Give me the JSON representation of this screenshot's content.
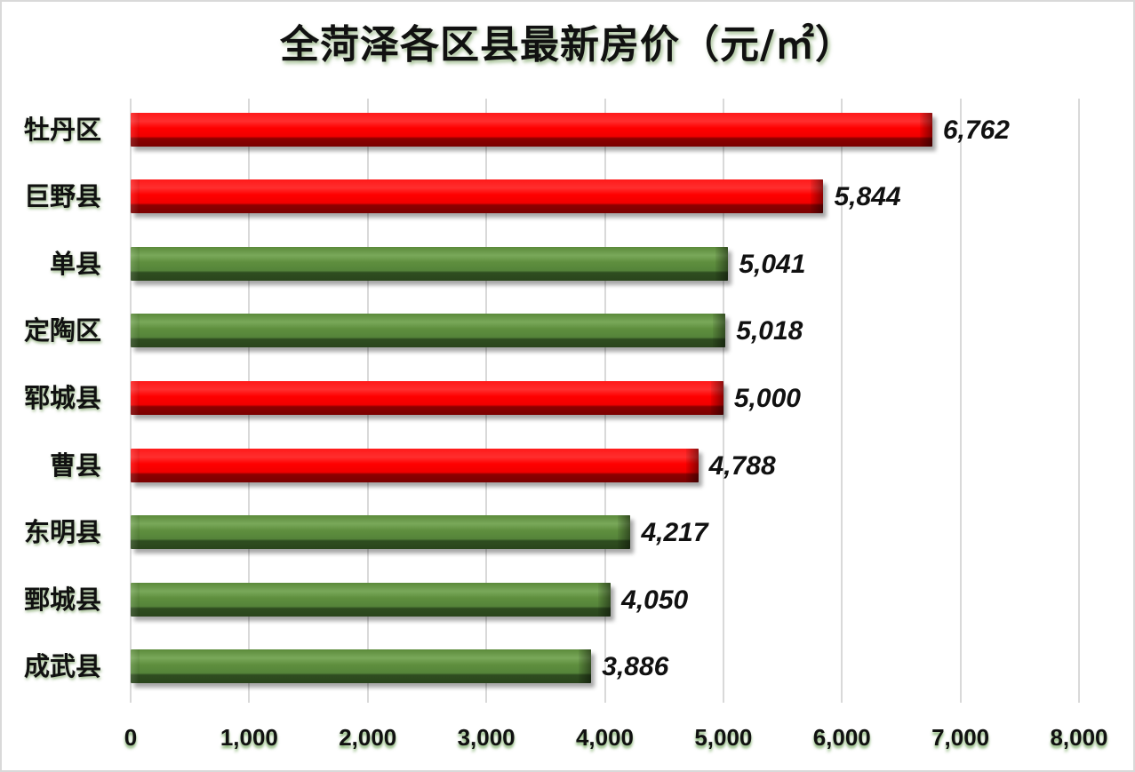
{
  "title": "全菏泽各区县最新房价（元/㎡）",
  "chart_data": {
    "type": "bar",
    "orientation": "horizontal",
    "title": "全菏泽各区县最新房价（元/㎡）",
    "xlabel": "",
    "ylabel": "",
    "xlim": [
      0,
      8000
    ],
    "grid": true,
    "legend": "none",
    "categories": [
      "牡丹区",
      "巨野县",
      "单县",
      "定陶区",
      "郓城县",
      "曹县",
      "东明县",
      "鄄城县",
      "成武县"
    ],
    "values": [
      6762,
      5844,
      5041,
      5018,
      5000,
      4788,
      4217,
      4050,
      3886
    ],
    "value_labels": [
      "6,762",
      "5,844",
      "5,041",
      "5,018",
      "5,000",
      "4,788",
      "4,217",
      "4,050",
      "3,886"
    ],
    "bar_colors": [
      "red",
      "red",
      "green",
      "green",
      "red",
      "red",
      "green",
      "green",
      "green"
    ],
    "x_ticks": [
      "0",
      "1,000",
      "2,000",
      "3,000",
      "4,000",
      "5,000",
      "6,000",
      "7,000",
      "8,000"
    ]
  },
  "colors": {
    "red": "#ff0000",
    "green": "#5b8a3a",
    "grid": "#d9d9d9"
  }
}
